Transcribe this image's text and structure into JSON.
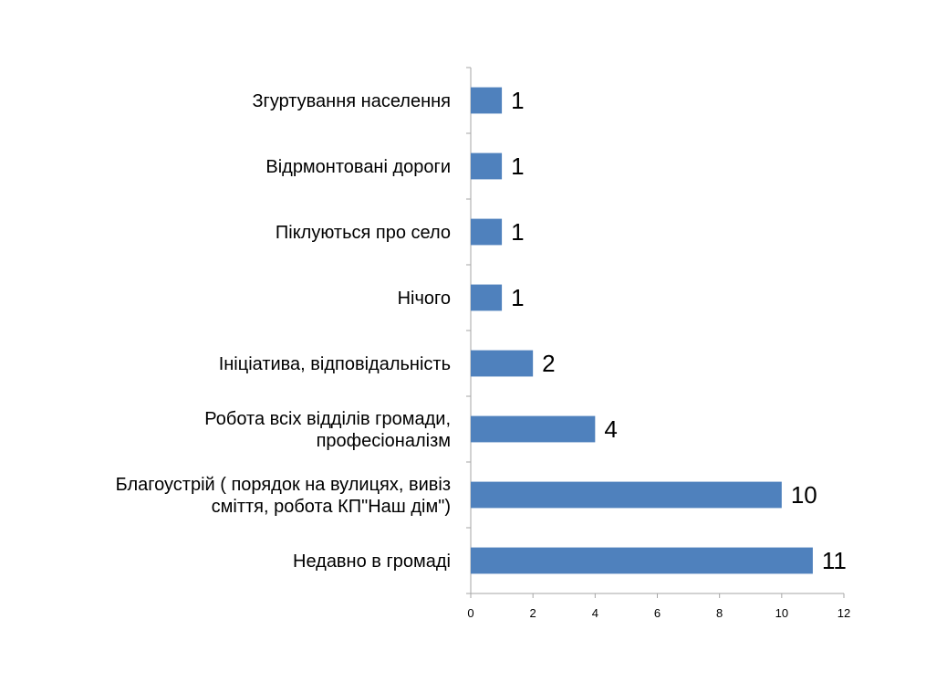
{
  "chart_data": {
    "type": "bar",
    "orientation": "horizontal",
    "title": "",
    "xlabel": "",
    "ylabel": "",
    "categories": [
      [
        "Згуртування населення"
      ],
      [
        "Відрмонтовані дороги"
      ],
      [
        "Піклуються про село"
      ],
      [
        "Нічого"
      ],
      [
        "Ініціатива, відповідальність"
      ],
      [
        "Робота всіх відділів громади,",
        "професіоналізм"
      ],
      [
        "Благоустрій ( порядок на вулицях, вивіз",
        "сміття, робота КП\"Наш дім\")"
      ],
      [
        "Недавно в громаді"
      ]
    ],
    "values": [
      1,
      1,
      1,
      1,
      2,
      4,
      10,
      11
    ],
    "xlim": [
      0,
      12
    ],
    "xticks": [
      "0",
      "2",
      "4",
      "6",
      "8",
      "10",
      "12"
    ],
    "data_labels": [
      "1",
      "1",
      "1",
      "1",
      "2",
      "4",
      "10",
      "11"
    ],
    "grid": false,
    "legend": "none",
    "bar_color": "#4F81BD",
    "axis_color": "#A6A6A6"
  }
}
